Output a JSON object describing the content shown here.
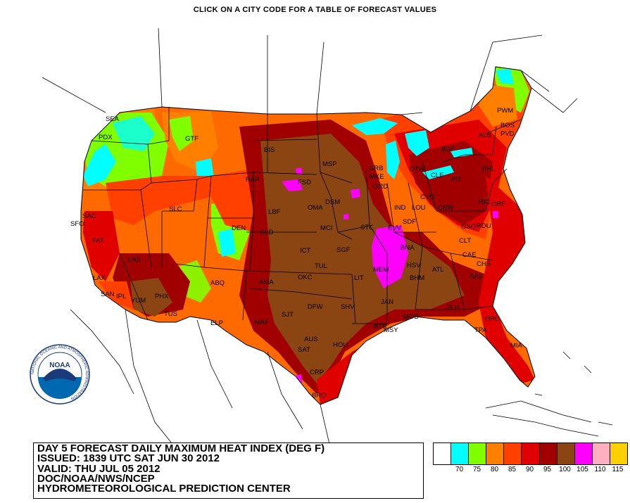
{
  "header": {
    "title": "CLICK ON A CITY CODE FOR A TABLE OF FORECAST VALUES"
  },
  "info": {
    "lines": [
      "DAY 5 FORECAST DAILY MAXIMUM HEAT INDEX (DEG F)",
      "ISSUED: 1839 UTC SAT JUN 30 2012",
      "VALID: THU JUL 05 2012",
      "DOC/NOAA/NWS/NCEP",
      "HYDROMETEOROLOGICAL PREDICTION CENTER"
    ]
  },
  "logo": {
    "text": "NOAA",
    "ring_text": "NATIONAL OCEANIC AND ATMOSPHERIC ADMINISTRATION"
  },
  "legend": {
    "colors": [
      "#ffffff",
      "#00ffff",
      "#80ff00",
      "#ff8000",
      "#ff4000",
      "#e00000",
      "#a00000",
      "#8b4513",
      "#ff00ff",
      "#ffb0c0",
      "#ffd000"
    ],
    "labels": [
      "",
      "70",
      "75",
      "80",
      "85",
      "90",
      "95",
      "100",
      "105",
      "110",
      "115"
    ]
  },
  "cities": [
    "SEA",
    "PDX",
    "GTF",
    "BIS",
    "FSD",
    "MSP",
    "RAP",
    "OMA",
    "DSM",
    "GRB",
    "MKE",
    "ORD",
    "DTW",
    "BUF",
    "ALB",
    "PWM",
    "BOS",
    "PVD",
    "PHL",
    "PIT",
    "CLE",
    "IND",
    "SDF",
    "LOU",
    "CVG",
    "CRW",
    "RIC",
    "ORF",
    "SAC",
    "SFO",
    "FAT",
    "LAS",
    "LAX",
    "SAN",
    "IPL",
    "YUM",
    "PHX",
    "TUS",
    "SLC",
    "DEN",
    "GLD",
    "LBF",
    "ICT",
    "MCI",
    "STL",
    "EVV",
    "BNA",
    "SGF",
    "TUL",
    "OKC",
    "LIT",
    "MEM",
    "HSV",
    "BHM",
    "ATL",
    "CLT",
    "CAE",
    "CHS",
    "SAV",
    "GSO",
    "RDU",
    "ABQ",
    "AMA",
    "ELP",
    "MAF",
    "SJT",
    "DFW",
    "SHV",
    "JAN",
    "MOB",
    "BTR",
    "MSY",
    "AUS",
    "SAT",
    "HOU",
    "CRP",
    "BRO",
    "TLH",
    "TPA",
    "ORL",
    "MIA"
  ]
}
